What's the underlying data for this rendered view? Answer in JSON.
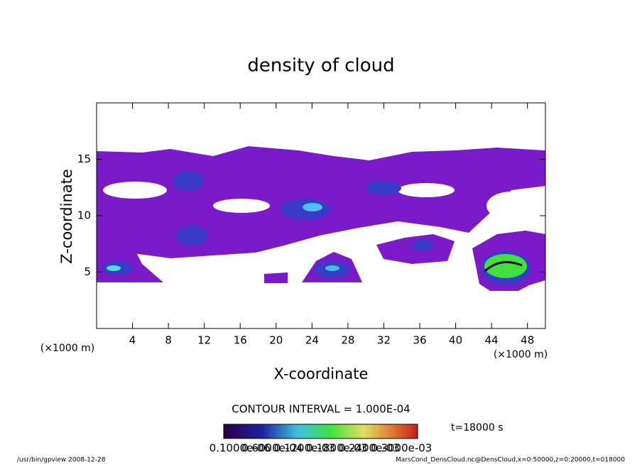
{
  "chart_data": {
    "type": "contour",
    "title": "density of cloud",
    "x_label": "X-coordinate",
    "y_label": "Z-coordinate",
    "x_unit": "(×1000 m)",
    "xlim": [
      0,
      50
    ],
    "xticks": [
      4,
      8,
      12,
      16,
      20,
      24,
      28,
      32,
      36,
      40,
      44,
      48
    ],
    "ylim": [
      0,
      20
    ],
    "yticks": [
      5,
      10,
      15
    ],
    "contour_interval": "CONTOUR INTERVAL = 1.000E-04",
    "time": "t=18000 s",
    "colorbar_labels": [
      "0.1000e-06",
      "0.6000e-04",
      "0.1200e-03",
      "0.1800e-03",
      "0.2400e-03",
      "0.3000e-03"
    ],
    "footer_left": "/usr/bin/gpview  2008-12-28",
    "footer_right": "MarsCond_DensCloud.nc@DensCloud,x=0:50000,z=0:20000,t=018000"
  }
}
